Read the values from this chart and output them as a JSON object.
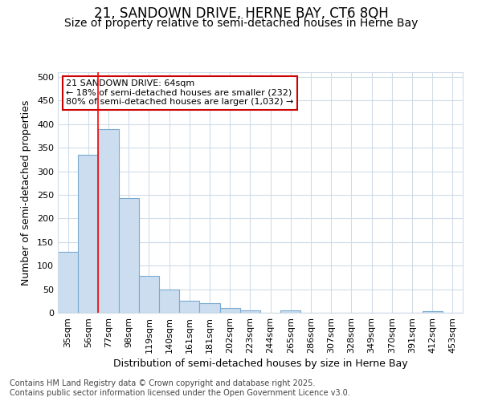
{
  "title1": "21, SANDOWN DRIVE, HERNE BAY, CT6 8QH",
  "title2": "Size of property relative to semi-detached houses in Herne Bay",
  "xlabel": "Distribution of semi-detached houses by size in Herne Bay",
  "ylabel": "Number of semi-detached properties",
  "categories": [
    "35sqm",
    "56sqm",
    "77sqm",
    "98sqm",
    "119sqm",
    "140sqm",
    "161sqm",
    "181sqm",
    "202sqm",
    "223sqm",
    "244sqm",
    "265sqm",
    "286sqm",
    "307sqm",
    "328sqm",
    "349sqm",
    "370sqm",
    "391sqm",
    "412sqm",
    "453sqm"
  ],
  "values": [
    130,
    335,
    390,
    243,
    78,
    50,
    26,
    20,
    10,
    5,
    0,
    5,
    0,
    0,
    0,
    0,
    0,
    0,
    3,
    0
  ],
  "bar_color": "#ccddf0",
  "bar_edge_color": "#7aaad0",
  "bar_edge_width": 0.8,
  "redline_x": 1.5,
  "annotation_line1": "21 SANDOWN DRIVE: 64sqm",
  "annotation_line2": "← 18% of semi-detached houses are smaller (232)",
  "annotation_line3": "80% of semi-detached houses are larger (1,032) →",
  "annotation_box_color": "#ffffff",
  "annotation_box_edge": "#cc0000",
  "ylim": [
    0,
    510
  ],
  "yticks": [
    0,
    50,
    100,
    150,
    200,
    250,
    300,
    350,
    400,
    450,
    500
  ],
  "background_color": "#ffffff",
  "plot_bg_color": "#ffffff",
  "grid_color": "#d0dce8",
  "footer": "Contains HM Land Registry data © Crown copyright and database right 2025.\nContains public sector information licensed under the Open Government Licence v3.0.",
  "title_fontsize": 12,
  "subtitle_fontsize": 10,
  "axis_label_fontsize": 9,
  "tick_fontsize": 8,
  "annotation_fontsize": 8,
  "footer_fontsize": 7
}
